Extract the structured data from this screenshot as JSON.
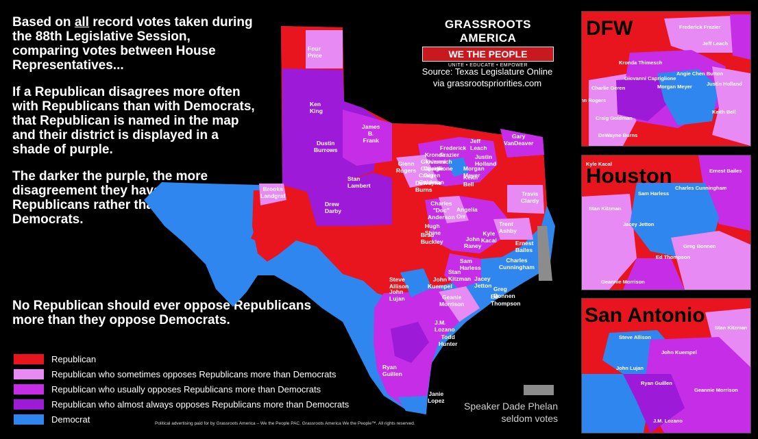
{
  "intro": {
    "line_pre": "Based on ",
    "line_underlined": "all",
    "line_post": " record votes taken during the 88th Legislative Session, comparing votes between House Representatives...",
    "rule": "If a Republican disagrees more often with Republicans than with Democrats, that Republican is named in the map and their district is displayed in a shade of purple.",
    "darker": "The darker the purple, the more disagreement they have with other Republicans rather than with Democrats."
  },
  "closing": "No Republican should ever oppose Republicans more than they oppose Democrats.",
  "logo": {
    "line1": "GRASSROOTS AMERICA",
    "line2": "WE THE PEOPLE",
    "tagline": "UNITE • EDUCATE • EMPOWER"
  },
  "source": {
    "line1": "Source: Texas Legislature Online",
    "line2": "via grassrootspriorities.com"
  },
  "legend": [
    {
      "label": "Republican",
      "color": "#e8141e"
    },
    {
      "label": "Republican who sometimes opposes Republicans more than Democrats",
      "color": "#e88af4"
    },
    {
      "label": "Republican who usually opposes Republicans more than Democrats",
      "color": "#c52ee6"
    },
    {
      "label": "Republican who almost always opposes Republicans more than Democrats",
      "color": "#9c1ad8"
    },
    {
      "label": "Democrat",
      "color": "#2f86ee"
    }
  ],
  "speaker": {
    "line1": "Speaker Dade Phelan",
    "line2": "seldom votes",
    "color": "#8c8c8c"
  },
  "disclaimer": "Political advertising paid for by Grassroots America – We the People PAC. Grassroots America We the People™. All rights reserved.",
  "main_labels": {
    "four_price": "Four Price",
    "ken_king": "Ken King",
    "james_frank_1": "James B.",
    "james_frank_2": "Frank",
    "dustin_burrows_1": "Dustin",
    "dustin_burrows_2": "Burrows",
    "brooks_landgraf_1": "Brooks",
    "brooks_landgraf_2": "Landgraf",
    "stan_lambert": "Stan Lambert",
    "drew_darby": "Drew Darby",
    "glenn_rogers_1": "Glenn",
    "glenn_rogers_2": "Rogers",
    "jeff_leach": "Jeff Leach",
    "gary_vandeaver_1": "Gary",
    "gary_vandeaver_2": "VanDeaver",
    "frederick_frazier": "Frederick Frazier",
    "kronda_thimesch": "Kronda Thimesch",
    "justin_holland": "Justin Holland",
    "giovanni_capriglione": "Giovanni Capriglione",
    "charlie_geren": "Charlie Geren",
    "morgan_meyer": "Morgan Meyer",
    "craig_goldman": "Craig Goldman",
    "keith_bell": "Keith Bell",
    "dewayne_burns": "DeWayne Burns",
    "travis_clardy_1": "Travis",
    "travis_clardy_2": "Clardy",
    "charles_anderson_1": "Charles",
    "charles_anderson_2": "\"Doc\"",
    "charles_anderson_3": "Anderson",
    "angelia_orr": "Angelia Orr",
    "hugh_shine": "Hugh Shine",
    "brad_buckley": "Brad Buckley",
    "trent_ashby": "Trent Ashby",
    "kyle_kacal_1": "Kyle",
    "kyle_kacal_2": "Kacal",
    "john_raney_1": "John",
    "john_raney_2": "Raney",
    "ernest_bailes": "Ernest Bailes",
    "sam_harless": "Sam Harless",
    "charles_cunningham_1": "Charles",
    "charles_cunningham_2": "Cunningham",
    "stan_kitzman": "Stan Kitzman",
    "jacey_jetton": "Jacey Jetton",
    "steve_allison": "Steve Allison",
    "john_kuempel_1": "John",
    "john_kuempel_2": "Kuempel",
    "john_lujan": "John Lujan",
    "greg_bonnen": "Greg Bonnen",
    "ed_thompson": "Ed Thompson",
    "geanie_morrison_1": "Geanie",
    "geanie_morrison_2": "Morrison",
    "jm_lozano": "J.M. Lozano",
    "todd_hunter_1": "Todd",
    "todd_hunter_2": "Hunter",
    "ryan_guillen": "Ryan Guillen",
    "janie_lopez_1": "Janie",
    "janie_lopez_2": "Lopez"
  },
  "inset_dfw": {
    "title": "DFW",
    "labels": {
      "frederick_frazier": "Frederick Frazier",
      "jeff_leach": "Jeff Leach",
      "kronda_thimesch": "Kronda Thimesch",
      "angie_chen_button": "Angie Chen Button",
      "giovanni_capriglione": "Giovanni Capriglione",
      "charlie_geren": "Charlie Geren",
      "morgan_meyer": "Morgan Meyer",
      "justin_holland": "Justin Holland",
      "glenn_rogers": "Glenn Rogers",
      "keith_bell": "Keith Bell",
      "craig_goldman": "Craig Goldman",
      "dewayne_burns": "DeWayne Burns"
    }
  },
  "inset_houston": {
    "title": "Houston",
    "labels": {
      "kyle_kacal": "Kyle Kacal",
      "ernest_bailes": "Ernest Bailes",
      "charles_cunningham": "Charles Cunningham",
      "sam_harless": "Sam Harless",
      "stan_kitzman": "Stan Kitzman",
      "jacey_jetton": "Jacey Jetton",
      "greg_bonnen": "Greg Bonnen",
      "ed_thompson": "Ed Thompson",
      "geanie_morrison": "Geannie Morrison"
    }
  },
  "inset_sa": {
    "title": "San Antonio",
    "labels": {
      "stan_kitzman": "Stan Kitzman",
      "steve_allison": "Steve Allison",
      "john_kuempel": "John Kuempel",
      "john_lujan": "John Lujan",
      "ryan_guillen": "Ryan Guillen",
      "geanie_morrison": "Geannie Morrison",
      "jm_lozano": "J.M. Lozano"
    }
  }
}
